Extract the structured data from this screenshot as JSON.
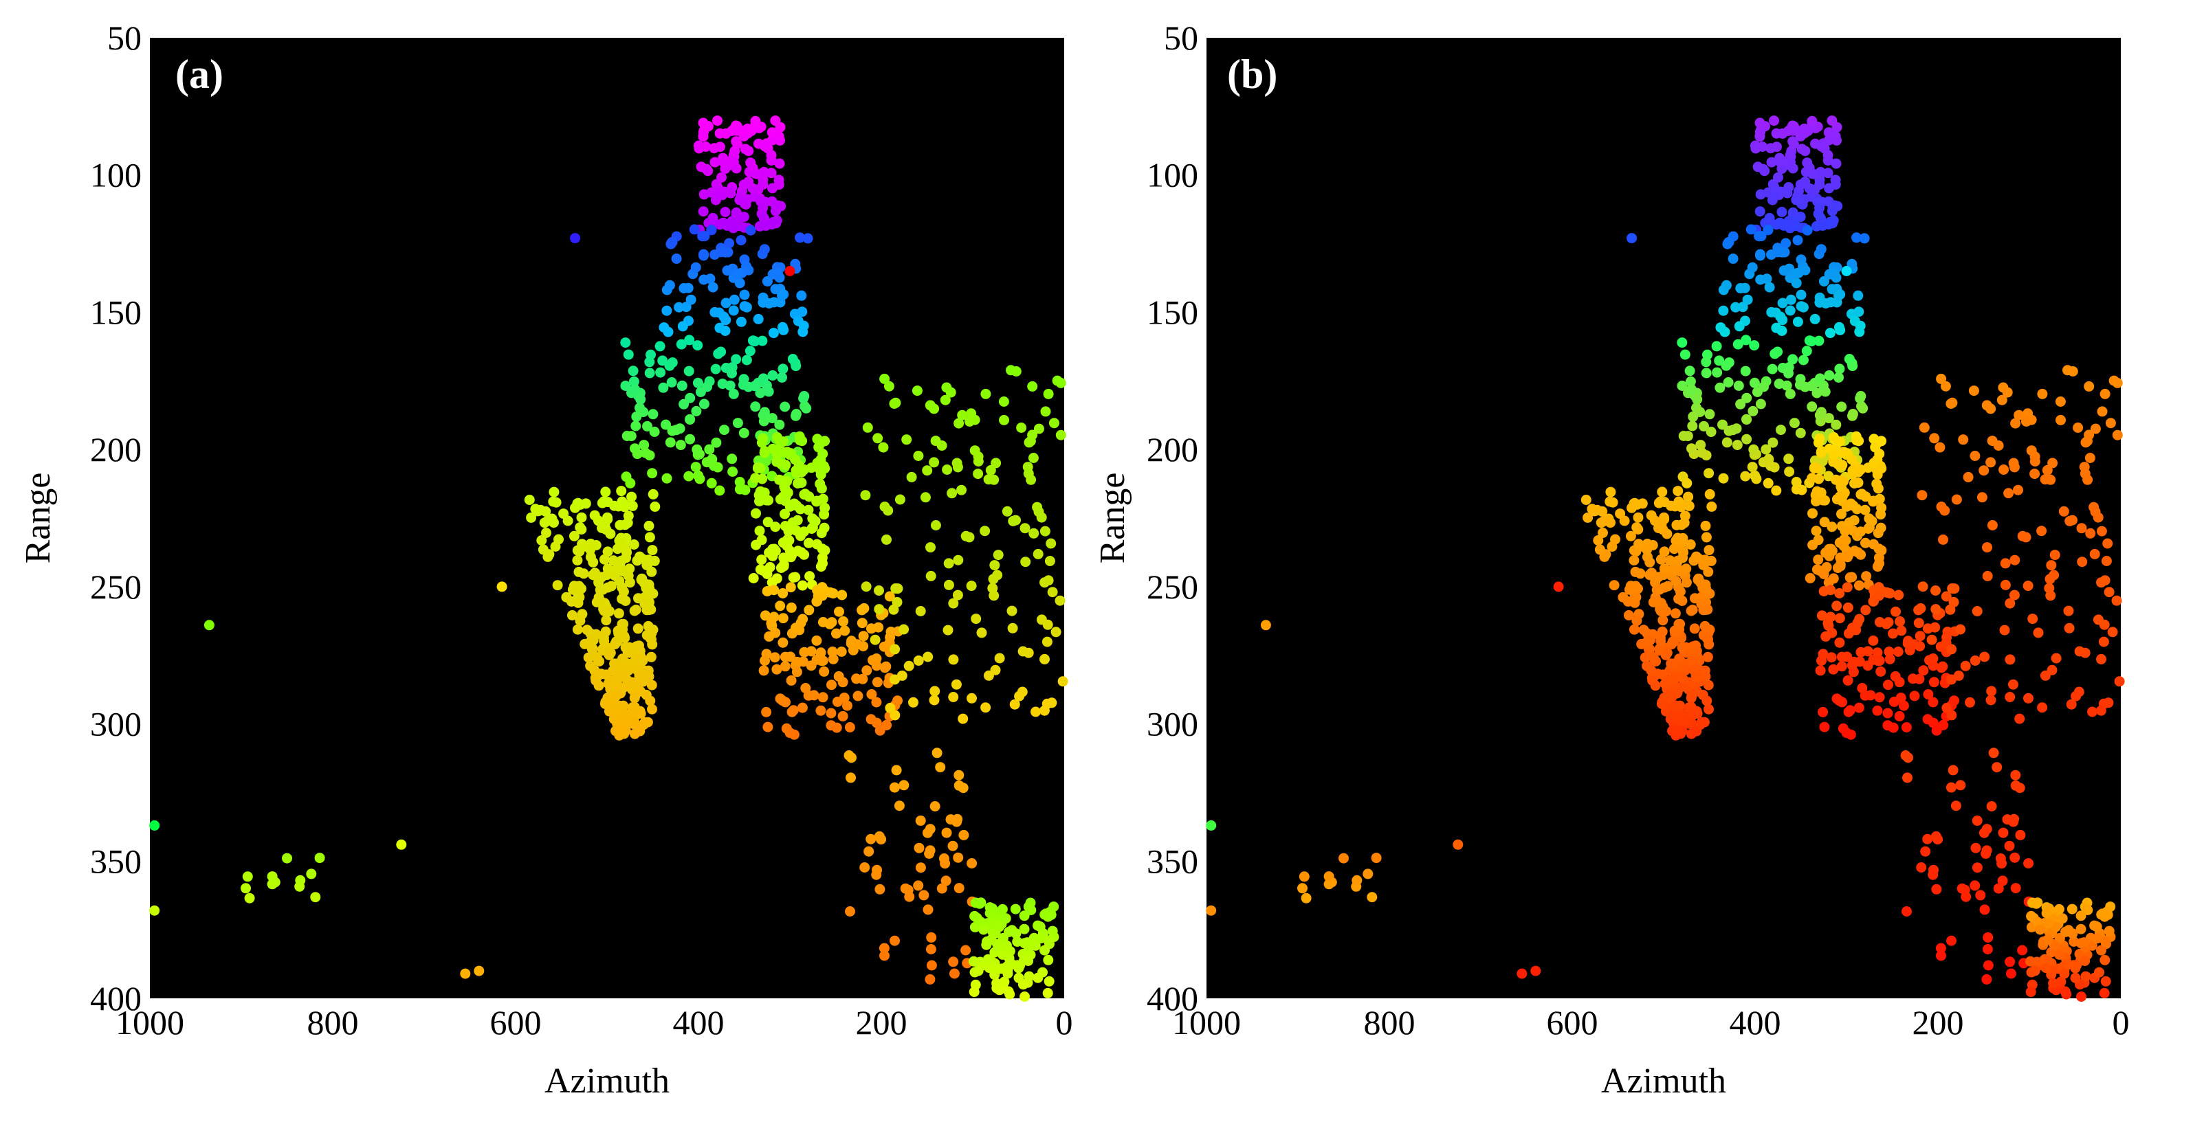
{
  "chart_data": [
    {
      "type": "scatter",
      "panel_label": "(a)",
      "xlabel": "Azimuth",
      "ylabel": "Range",
      "xlim": [
        1000,
        0
      ],
      "ylim": [
        400,
        50
      ],
      "xticks": [
        "1000",
        "800",
        "600",
        "400",
        "200",
        "0"
      ],
      "yticks": [
        "50",
        "100",
        "150",
        "200",
        "250",
        "300",
        "350",
        "400"
      ],
      "background": "#000000",
      "colormap": "hsv: magenta (near range) -> blue -> cyan -> green -> yellow -> orange (far range)",
      "clusters": [
        {
          "name": "top-cluster-upper",
          "x": [
            400,
            310
          ],
          "y": [
            80,
            120
          ],
          "count": 140,
          "color_range": [
            "#ff00ff",
            "#b000ff"
          ]
        },
        {
          "name": "top-cluster-lower",
          "x": [
            440,
            280
          ],
          "y": [
            118,
            158
          ],
          "count": 90,
          "color_range": [
            "#2040ff",
            "#00c0ff"
          ]
        },
        {
          "name": "middle-band",
          "x": [
            480,
            280
          ],
          "y": [
            160,
            215
          ],
          "count": 150,
          "color_range": [
            "#00e8a0",
            "#80ff00"
          ]
        },
        {
          "name": "left-triangle",
          "x": [
            580,
            440
          ],
          "y": [
            215,
            305
          ],
          "count": 320,
          "color_range": [
            "#c8ff00",
            "#ffb000"
          ]
        },
        {
          "name": "center-column",
          "x": [
            340,
            260
          ],
          "y": [
            195,
            250
          ],
          "count": 140,
          "color_range": [
            "#90ff00",
            "#e0ff00"
          ]
        },
        {
          "name": "center-lower",
          "x": [
            330,
            180
          ],
          "y": [
            250,
            305
          ],
          "count": 130,
          "color_range": [
            "#ffc000",
            "#ff7000"
          ]
        },
        {
          "name": "right-scatter",
          "x": [
            220,
            0
          ],
          "y": [
            170,
            300
          ],
          "count": 150,
          "color_range": [
            "#80ff00",
            "#ffd000"
          ]
        },
        {
          "name": "far-right-bottom",
          "x": [
            240,
            100
          ],
          "y": [
            310,
            395
          ],
          "count": 60,
          "color_range": [
            "#ffb000",
            "#ff7000"
          ]
        },
        {
          "name": "bottom-right-blob",
          "x": [
            100,
            10
          ],
          "y": [
            365,
            400
          ],
          "count": 120,
          "color_range": [
            "#90ff00",
            "#e0ff00"
          ]
        },
        {
          "name": "left-small-group",
          "x": [
            900,
            800
          ],
          "y": [
            348,
            366
          ],
          "count": 12,
          "color_range": [
            "#a0ff00",
            "#c8ff00"
          ]
        }
      ],
      "isolated_points": [
        {
          "x": 535,
          "y": 123,
          "color": "#3020ff"
        },
        {
          "x": 935,
          "y": 264,
          "color": "#80ff00"
        },
        {
          "x": 995,
          "y": 337,
          "color": "#00ff40"
        },
        {
          "x": 995,
          "y": 368,
          "color": "#c8ff00"
        },
        {
          "x": 725,
          "y": 344,
          "color": "#e0ff00"
        },
        {
          "x": 655,
          "y": 391,
          "color": "#ffb000"
        },
        {
          "x": 640,
          "y": 390,
          "color": "#ffb000"
        },
        {
          "x": 615,
          "y": 250,
          "color": "#ffe000"
        },
        {
          "x": 300,
          "y": 135,
          "color": "#ff0000"
        }
      ]
    },
    {
      "type": "scatter",
      "panel_label": "(b)",
      "xlabel": "Azimuth",
      "ylabel": "Range",
      "xlim": [
        1000,
        0
      ],
      "ylim": [
        400,
        50
      ],
      "xticks": [
        "1000",
        "800",
        "600",
        "400",
        "200",
        "0"
      ],
      "yticks": [
        "50",
        "100",
        "150",
        "200",
        "250",
        "300",
        "350",
        "400"
      ],
      "background": "#000000",
      "colormap": "hsv shifted: purple/blue (near range) -> cyan -> green -> yellow -> orange -> red (far range)",
      "clusters": [
        {
          "name": "top-cluster-upper",
          "x": [
            400,
            310
          ],
          "y": [
            80,
            120
          ],
          "count": 140,
          "color_range": [
            "#a020ff",
            "#3040ff"
          ]
        },
        {
          "name": "top-cluster-lower",
          "x": [
            440,
            280
          ],
          "y": [
            118,
            158
          ],
          "count": 90,
          "color_range": [
            "#1060ff",
            "#00e0e0"
          ]
        },
        {
          "name": "middle-band",
          "x": [
            480,
            280
          ],
          "y": [
            160,
            215
          ],
          "count": 150,
          "color_range": [
            "#20ff60",
            "#ffd000"
          ]
        },
        {
          "name": "left-triangle",
          "x": [
            580,
            440
          ],
          "y": [
            215,
            305
          ],
          "count": 320,
          "color_range": [
            "#ffc000",
            "#ff3000"
          ]
        },
        {
          "name": "center-column",
          "x": [
            340,
            260
          ],
          "y": [
            195,
            250
          ],
          "count": 140,
          "color_range": [
            "#ffe000",
            "#ff8000"
          ]
        },
        {
          "name": "center-lower",
          "x": [
            330,
            180
          ],
          "y": [
            250,
            305
          ],
          "count": 130,
          "color_range": [
            "#ff5000",
            "#ff1000"
          ]
        },
        {
          "name": "right-scatter",
          "x": [
            220,
            0
          ],
          "y": [
            170,
            300
          ],
          "count": 150,
          "color_range": [
            "#ff9000",
            "#ff3000"
          ]
        },
        {
          "name": "far-right-bottom",
          "x": [
            240,
            100
          ],
          "y": [
            310,
            395
          ],
          "count": 60,
          "color_range": [
            "#ff4000",
            "#ff1000"
          ]
        },
        {
          "name": "bottom-right-blob",
          "x": [
            100,
            10
          ],
          "y": [
            365,
            400
          ],
          "count": 120,
          "color_range": [
            "#ffb000",
            "#ff2000"
          ]
        },
        {
          "name": "left-small-group",
          "x": [
            900,
            800
          ],
          "y": [
            348,
            366
          ],
          "count": 12,
          "color_range": [
            "#ff8000",
            "#ffb000"
          ]
        }
      ],
      "isolated_points": [
        {
          "x": 535,
          "y": 123,
          "color": "#2050ff"
        },
        {
          "x": 935,
          "y": 264,
          "color": "#ffa000"
        },
        {
          "x": 995,
          "y": 337,
          "color": "#40ff40"
        },
        {
          "x": 995,
          "y": 368,
          "color": "#ff9000"
        },
        {
          "x": 725,
          "y": 344,
          "color": "#ff6000"
        },
        {
          "x": 655,
          "y": 391,
          "color": "#ff2000"
        },
        {
          "x": 640,
          "y": 390,
          "color": "#ff2000"
        },
        {
          "x": 615,
          "y": 250,
          "color": "#ff2000"
        },
        {
          "x": 300,
          "y": 135,
          "color": "#00e0ff"
        }
      ]
    }
  ]
}
